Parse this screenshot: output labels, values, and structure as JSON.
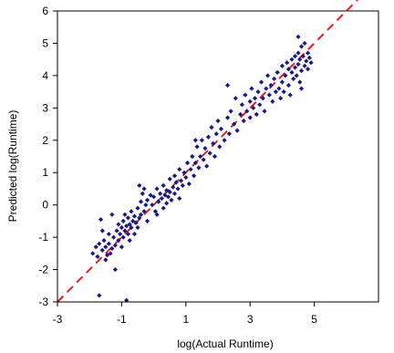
{
  "chart_data": {
    "type": "scatter",
    "xlabel": "log(Actual Runtime)",
    "ylabel": "Predicted log(Runtime)",
    "xlim": [
      -3,
      7
    ],
    "ylim": [
      -3,
      6
    ],
    "x_ticks": [
      -3,
      -1,
      1,
      3,
      5
    ],
    "x_tick_labels": [
      "-3",
      "-1",
      "1",
      "3",
      "5"
    ],
    "y_ticks": [
      -3,
      -2,
      -1,
      0,
      1,
      2,
      3,
      4,
      5,
      6
    ],
    "y_tick_labels": [
      "-3",
      "-2",
      "-1",
      "0",
      "1",
      "2",
      "3",
      "4",
      "5",
      "6"
    ],
    "grid": false,
    "legend": "none",
    "marker": "diamond",
    "colors": {
      "points": "#1a1a80",
      "reference_line": "#e02020",
      "axes": "#000000"
    },
    "reference_line": {
      "style": "dashed",
      "from": [
        -3,
        -3
      ],
      "to": [
        7,
        7
      ]
    },
    "series": [
      {
        "values": [
          [
            -1.9,
            -1.5
          ],
          [
            -1.8,
            -1.3
          ],
          [
            -1.75,
            -1.6
          ],
          [
            -1.7,
            -2.8
          ],
          [
            -1.7,
            -1.2
          ],
          [
            -1.65,
            -0.45
          ],
          [
            -1.6,
            -1.4
          ],
          [
            -1.55,
            -1.1
          ],
          [
            -1.5,
            -1.7
          ],
          [
            -1.5,
            -1.3
          ],
          [
            -1.45,
            -1.55
          ],
          [
            -1.4,
            -1.2
          ],
          [
            -1.4,
            -0.9
          ],
          [
            -1.35,
            -1.5
          ],
          [
            -1.3,
            -1.35
          ],
          [
            -1.3,
            -0.3
          ],
          [
            -1.25,
            -1.0
          ],
          [
            -1.2,
            -1.25
          ],
          [
            -1.2,
            -2.0
          ],
          [
            -1.15,
            -0.8
          ],
          [
            -1.1,
            -1.1
          ],
          [
            -1.1,
            -0.6
          ],
          [
            -1.05,
            -0.9
          ],
          [
            -1.0,
            -0.7
          ],
          [
            -1.0,
            -1.3
          ],
          [
            -0.95,
            -0.5
          ],
          [
            -0.95,
            -1.0
          ],
          [
            -0.9,
            -0.8
          ],
          [
            -0.9,
            -0.3
          ],
          [
            -0.85,
            -0.65
          ],
          [
            -0.85,
            -2.95
          ],
          [
            -0.8,
            -0.9
          ],
          [
            -0.8,
            -0.4
          ],
          [
            -0.75,
            -0.6
          ],
          [
            -0.75,
            -1.1
          ],
          [
            -0.7,
            -0.2
          ],
          [
            -0.7,
            -0.7
          ],
          [
            -0.65,
            -0.5
          ],
          [
            -0.6,
            -0.35
          ],
          [
            -0.6,
            -0.9
          ],
          [
            -0.55,
            -0.55
          ],
          [
            -0.5,
            -0.1
          ],
          [
            -0.5,
            -0.7
          ],
          [
            -0.45,
            -0.4
          ],
          [
            -0.4,
            0.1
          ],
          [
            -0.4,
            -0.3
          ],
          [
            -0.35,
            0.35
          ],
          [
            -0.3,
            -0.2
          ],
          [
            -0.3,
            0.5
          ],
          [
            -0.25,
            0.0
          ],
          [
            -0.2,
            0.15
          ],
          [
            -0.2,
            -0.5
          ],
          [
            -0.1,
            0.3
          ],
          [
            -0.05,
            0.0
          ],
          [
            0.0,
            0.25
          ],
          [
            0.05,
            -0.2
          ],
          [
            0.1,
            0.5
          ],
          [
            0.15,
            0.1
          ],
          [
            0.2,
            0.35
          ],
          [
            0.25,
            0.2
          ],
          [
            0.3,
            -0.1
          ],
          [
            0.3,
            0.6
          ],
          [
            0.35,
            0.3
          ],
          [
            0.4,
            0.45
          ],
          [
            0.4,
            0.05
          ],
          [
            0.45,
            0.25
          ],
          [
            0.5,
            0.8
          ],
          [
            0.5,
            0.4
          ],
          [
            0.55,
            0.15
          ],
          [
            0.6,
            0.55
          ],
          [
            0.65,
            0.9
          ],
          [
            0.65,
            0.35
          ],
          [
            0.7,
            0.7
          ],
          [
            0.75,
            0.5
          ],
          [
            0.8,
            1.1
          ],
          [
            0.8,
            0.2
          ],
          [
            0.85,
            0.75
          ],
          [
            0.9,
            0.6
          ],
          [
            0.95,
            1.0
          ],
          [
            1.0,
            0.85
          ],
          [
            1.05,
            1.3
          ],
          [
            1.1,
            0.65
          ],
          [
            1.15,
            1.1
          ],
          [
            1.2,
            1.5
          ],
          [
            1.25,
            0.9
          ],
          [
            1.3,
            1.3
          ],
          [
            1.35,
            1.8
          ],
          [
            1.4,
            1.15
          ],
          [
            1.45,
            1.5
          ],
          [
            1.5,
            2.0
          ],
          [
            1.55,
            1.4
          ],
          [
            1.6,
            1.75
          ],
          [
            1.65,
            1.2
          ],
          [
            1.7,
            2.1
          ],
          [
            1.75,
            1.6
          ],
          [
            1.8,
            2.4
          ],
          [
            1.85,
            1.9
          ],
          [
            1.9,
            1.5
          ],
          [
            1.95,
            2.2
          ],
          [
            2.0,
            2.6
          ],
          [
            2.05,
            1.8
          ],
          [
            2.1,
            2.35
          ],
          [
            2.2,
            2.0
          ],
          [
            2.3,
            2.7
          ],
          [
            2.35,
            2.2
          ],
          [
            2.4,
            2.9
          ],
          [
            2.5,
            2.5
          ],
          [
            2.55,
            3.3
          ],
          [
            2.6,
            2.3
          ],
          [
            2.7,
            2.8
          ],
          [
            2.75,
            3.1
          ],
          [
            2.8,
            2.6
          ],
          [
            2.85,
            3.4
          ],
          [
            2.9,
            2.9
          ],
          [
            3.0,
            3.2
          ],
          [
            3.0,
            2.7
          ],
          [
            3.05,
            3.6
          ],
          [
            3.1,
            3.0
          ],
          [
            3.15,
            3.3
          ],
          [
            3.2,
            2.8
          ],
          [
            3.25,
            3.5
          ],
          [
            3.3,
            3.1
          ],
          [
            3.35,
            3.8
          ],
          [
            3.4,
            3.3
          ],
          [
            3.45,
            2.9
          ],
          [
            3.5,
            3.6
          ],
          [
            3.55,
            4.0
          ],
          [
            3.6,
            3.4
          ],
          [
            3.65,
            3.7
          ],
          [
            3.7,
            3.2
          ],
          [
            3.75,
            3.9
          ],
          [
            3.8,
            3.5
          ],
          [
            3.85,
            4.1
          ],
          [
            3.9,
            3.6
          ],
          [
            3.95,
            3.3
          ],
          [
            4.0,
            3.8
          ],
          [
            4.0,
            4.3
          ],
          [
            4.05,
            3.5
          ],
          [
            4.1,
            4.0
          ],
          [
            4.15,
            4.4
          ],
          [
            4.2,
            3.7
          ],
          [
            4.2,
            4.2
          ],
          [
            4.25,
            3.4
          ],
          [
            4.3,
            4.5
          ],
          [
            4.3,
            4.1
          ],
          [
            4.35,
            3.9
          ],
          [
            4.4,
            4.6
          ],
          [
            4.4,
            4.25
          ],
          [
            4.45,
            4.0
          ],
          [
            4.5,
            4.7
          ],
          [
            4.5,
            4.35
          ],
          [
            4.55,
            3.8
          ],
          [
            4.55,
            4.5
          ],
          [
            4.6,
            4.9
          ],
          [
            4.6,
            4.15
          ],
          [
            4.65,
            4.6
          ],
          [
            4.7,
            4.3
          ],
          [
            4.7,
            5.0
          ],
          [
            4.75,
            4.45
          ],
          [
            4.8,
            4.7
          ],
          [
            4.8,
            4.2
          ],
          [
            4.85,
            4.55
          ],
          [
            4.9,
            4.4
          ],
          [
            4.5,
            5.2
          ],
          [
            4.6,
            3.6
          ],
          [
            2.3,
            3.7
          ],
          [
            1.3,
            2.0
          ],
          [
            0.1,
            -0.3
          ],
          [
            -0.45,
            0.6
          ],
          [
            -1.6,
            -0.8
          ]
        ]
      }
    ]
  }
}
